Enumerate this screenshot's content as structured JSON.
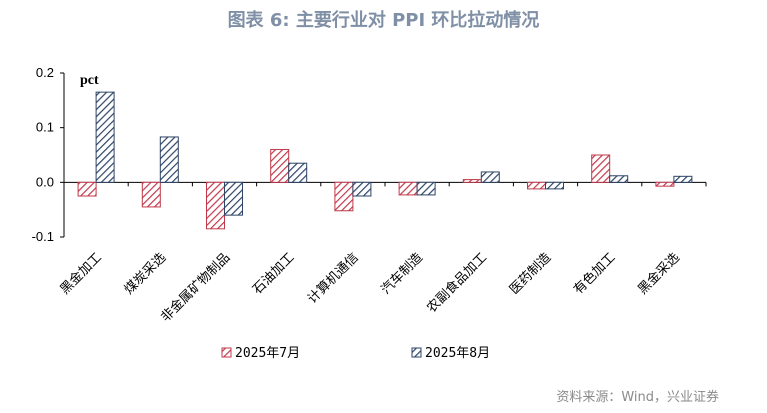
{
  "title": "图表 6:  主要行业对 PPI 环比拉动情况",
  "source": "资料来源：Wind，兴业证券",
  "chart_data": {
    "type": "bar",
    "unit_label": "pct",
    "categories": [
      "黑金加工",
      "煤炭采选",
      "非金属矿物制品",
      "石油加工",
      "计算机通信",
      "汽车制造",
      "农副食品加工",
      "医药制造",
      "有色加工",
      "黑金采选"
    ],
    "series": [
      {
        "name": "2025年7月",
        "color": "#c0394b",
        "values": [
          -0.025,
          -0.045,
          -0.085,
          0.06,
          -0.052,
          -0.023,
          0.005,
          -0.012,
          0.05,
          -0.007
        ]
      },
      {
        "name": "2025年8月",
        "color": "#2e4466",
        "values": [
          0.165,
          0.083,
          -0.06,
          0.035,
          -0.025,
          -0.023,
          0.019,
          -0.012,
          0.012,
          0.011
        ]
      }
    ],
    "ylim": [
      -0.1,
      0.2
    ],
    "yticks": [
      "0.2",
      "0.1",
      "0.0",
      "-0.1"
    ],
    "grid": false,
    "legend_position": "bottom"
  }
}
